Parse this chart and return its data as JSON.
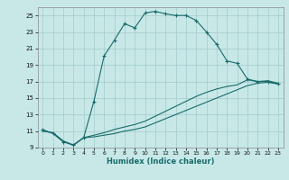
{
  "xlabel": "Humidex (Indice chaleur)",
  "bg_color": "#c8e8e8",
  "grid_color": "#a8d0d0",
  "line_color": "#1a6b6b",
  "xlim": [
    -0.5,
    23.5
  ],
  "ylim": [
    9,
    26
  ],
  "xticks": [
    0,
    1,
    2,
    3,
    4,
    5,
    6,
    7,
    8,
    9,
    10,
    11,
    12,
    13,
    14,
    15,
    16,
    17,
    18,
    19,
    20,
    21,
    22,
    23
  ],
  "yticks": [
    9,
    11,
    13,
    15,
    17,
    19,
    21,
    23,
    25
  ],
  "line1_x": [
    0,
    1,
    2,
    3,
    4,
    5,
    6,
    7,
    8,
    9,
    10,
    11,
    12,
    13,
    14,
    15,
    16,
    17,
    18,
    19,
    20,
    21,
    22,
    23
  ],
  "line1_y": [
    11.2,
    10.7,
    9.7,
    9.3,
    10.2,
    14.6,
    20.1,
    22.0,
    24.0,
    23.5,
    25.3,
    25.5,
    25.2,
    25.0,
    25.0,
    24.4,
    23.0,
    21.5,
    19.5,
    19.2,
    17.3,
    17.0,
    17.0,
    16.7
  ],
  "line2_x": [
    0,
    1,
    2,
    3,
    4,
    5,
    6,
    7,
    8,
    9,
    10,
    11,
    12,
    13,
    14,
    15,
    16,
    17,
    18,
    19,
    20,
    21,
    22,
    23
  ],
  "line2_y": [
    11.0,
    10.8,
    9.8,
    9.3,
    10.2,
    10.5,
    10.8,
    11.2,
    11.5,
    11.8,
    12.2,
    12.8,
    13.4,
    14.0,
    14.6,
    15.2,
    15.7,
    16.1,
    16.4,
    16.6,
    17.2,
    17.0,
    17.1,
    16.8
  ],
  "line3_x": [
    0,
    1,
    2,
    3,
    4,
    5,
    6,
    7,
    8,
    9,
    10,
    11,
    12,
    13,
    14,
    15,
    16,
    17,
    18,
    19,
    20,
    21,
    22,
    23
  ],
  "line3_y": [
    11.0,
    10.8,
    9.8,
    9.3,
    10.2,
    10.3,
    10.5,
    10.7,
    11.0,
    11.2,
    11.5,
    12.0,
    12.5,
    13.0,
    13.5,
    14.0,
    14.5,
    15.0,
    15.5,
    16.0,
    16.5,
    16.8,
    16.9,
    16.7
  ]
}
